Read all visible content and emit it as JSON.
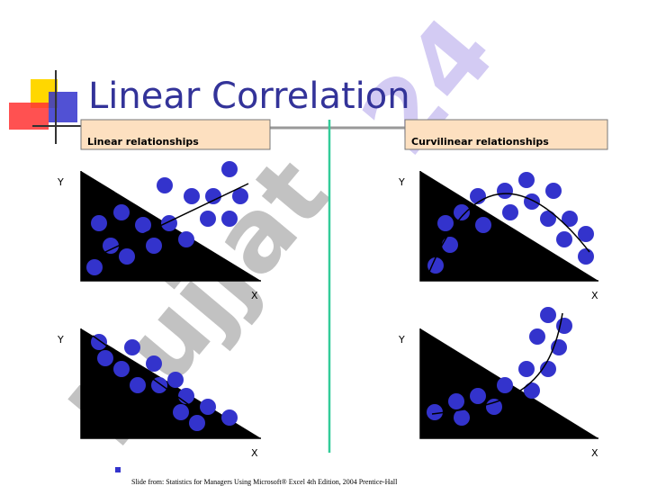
{
  "header": {
    "title": "Linear Correlation"
  },
  "watermark": {
    "word": "Hujjat",
    "number": "24"
  },
  "panels": [
    {
      "heading": "Linear relationships",
      "plots": [
        {
          "y_label": "Y",
          "x_label": "X"
        },
        {
          "y_label": "Y",
          "x_label": "X"
        }
      ]
    },
    {
      "heading": "Curvilinear relationships",
      "plots": [
        {
          "y_label": "Y",
          "x_label": "X"
        },
        {
          "y_label": "Y",
          "x_label": "X"
        }
      ]
    }
  ],
  "footer": {
    "source": "Slide from: Statistics for Managers Using Microsoft® Excel  4th Edition, 2004 Prentice-Hall"
  }
}
